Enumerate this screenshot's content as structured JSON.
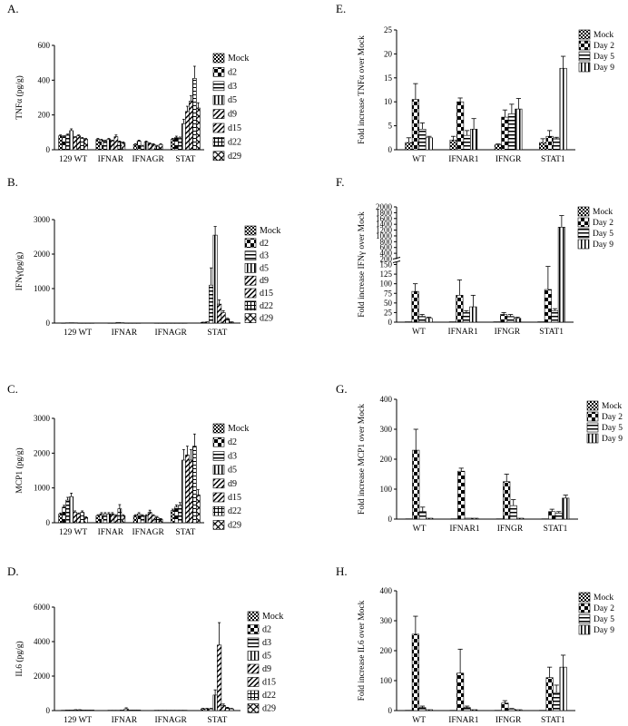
{
  "patterns": {
    "Mock": "checker",
    "d2": "blockR",
    "d3": "hstripe",
    "d5": "vstripe",
    "d9": "diag",
    "d15": "diag",
    "d22": "grid",
    "d29": "cross",
    "Day 2": "blockR",
    "Day 5": "hstripe",
    "Day 9": "vstripe"
  },
  "chart_data": [
    {
      "panel": "A.",
      "type": "bar",
      "ylabel": "TNFα (pg/g)",
      "yticks": [
        0,
        200,
        400,
        600
      ],
      "ylim": [
        0,
        600
      ],
      "categories": [
        "129 WT",
        "IFNAR",
        "IFNAGR",
        "STAT"
      ],
      "legend": [
        "Mock",
        "d2",
        "d3",
        "d5",
        "d9",
        "d15",
        "d22",
        "d29"
      ],
      "series": [
        {
          "name": "Mock",
          "values": [
            80,
            60,
            30,
            60
          ],
          "errors": [
            5,
            5,
            5,
            5
          ]
        },
        {
          "name": "d2",
          "values": [
            75,
            55,
            50,
            70
          ],
          "errors": [
            5,
            5,
            5,
            8
          ]
        },
        {
          "name": "d3",
          "values": [
            85,
            50,
            20,
            65
          ],
          "errors": [
            5,
            5,
            5,
            8
          ]
        },
        {
          "name": "d5",
          "values": [
            110,
            60,
            45,
            150
          ],
          "errors": [
            10,
            5,
            5,
            25
          ]
        },
        {
          "name": "d9",
          "values": [
            70,
            50,
            35,
            220
          ],
          "errors": [
            5,
            5,
            5,
            30
          ]
        },
        {
          "name": "d15",
          "values": [
            80,
            75,
            30,
            280
          ],
          "errors": [
            5,
            10,
            5,
            30
          ]
        },
        {
          "name": "d22",
          "values": [
            65,
            45,
            20,
            410
          ],
          "errors": [
            5,
            5,
            5,
            70
          ]
        },
        {
          "name": "d29",
          "values": [
            60,
            40,
            30,
            240
          ],
          "errors": [
            5,
            5,
            5,
            30
          ]
        }
      ]
    },
    {
      "panel": "B.",
      "type": "bar",
      "ylabel": "IFNγ(pg/g)",
      "yticks": [
        0,
        1000,
        2000,
        3000
      ],
      "ylim": [
        0,
        3000
      ],
      "categories": [
        "129 WT",
        "IFNAR",
        "IFNAGR",
        "STAT"
      ],
      "legend": [
        "Mock",
        "d2",
        "d3",
        "d5",
        "d9",
        "d15",
        "d22",
        "d29"
      ],
      "series": [
        {
          "name": "Mock",
          "values": [
            5,
            5,
            5,
            20
          ],
          "errors": [
            0,
            0,
            0,
            5
          ]
        },
        {
          "name": "d2",
          "values": [
            8,
            5,
            5,
            30
          ],
          "errors": [
            0,
            0,
            0,
            5
          ]
        },
        {
          "name": "d3",
          "values": [
            10,
            20,
            5,
            1100
          ],
          "errors": [
            0,
            0,
            0,
            500
          ]
        },
        {
          "name": "d5",
          "values": [
            8,
            10,
            5,
            2550
          ],
          "errors": [
            0,
            0,
            0,
            250
          ]
        },
        {
          "name": "d9",
          "values": [
            5,
            5,
            5,
            550
          ],
          "errors": [
            0,
            0,
            0,
            120
          ]
        },
        {
          "name": "d15",
          "values": [
            5,
            5,
            5,
            300
          ],
          "errors": [
            0,
            0,
            0,
            60
          ]
        },
        {
          "name": "d22",
          "values": [
            5,
            5,
            5,
            120
          ],
          "errors": [
            0,
            0,
            0,
            20
          ]
        },
        {
          "name": "d29",
          "values": [
            5,
            5,
            5,
            30
          ],
          "errors": [
            0,
            0,
            0,
            5
          ]
        }
      ]
    },
    {
      "panel": "C.",
      "type": "bar",
      "ylabel": "MCP1 (pg/g)",
      "yticks": [
        0,
        1000,
        2000,
        3000
      ],
      "ylim": [
        0,
        3000
      ],
      "categories": [
        "129 WT",
        "IFNAR",
        "IFNAGR",
        "STAT"
      ],
      "legend": [
        "Mock",
        "d2",
        "d3",
        "d5",
        "d9",
        "d15",
        "d22",
        "d29"
      ],
      "series": [
        {
          "name": "Mock",
          "values": [
            250,
            200,
            200,
            350
          ],
          "errors": [
            30,
            30,
            30,
            40
          ]
        },
        {
          "name": "d2",
          "values": [
            450,
            250,
            250,
            450
          ],
          "errors": [
            50,
            40,
            40,
            60
          ]
        },
        {
          "name": "d3",
          "values": [
            650,
            250,
            200,
            500
          ],
          "errors": [
            80,
            40,
            30,
            80
          ]
        },
        {
          "name": "d5",
          "values": [
            750,
            250,
            200,
            1800
          ],
          "errors": [
            100,
            40,
            30,
            300
          ]
        },
        {
          "name": "d9",
          "values": [
            300,
            250,
            300,
            1950
          ],
          "errors": [
            40,
            40,
            60,
            250
          ]
        },
        {
          "name": "d15",
          "values": [
            250,
            200,
            200,
            1800
          ],
          "errors": [
            30,
            30,
            30,
            300
          ]
        },
        {
          "name": "d22",
          "values": [
            300,
            400,
            150,
            2200
          ],
          "errors": [
            40,
            120,
            30,
            350
          ]
        },
        {
          "name": "d29",
          "values": [
            150,
            200,
            100,
            800
          ],
          "errors": [
            20,
            30,
            20,
            150
          ]
        }
      ]
    },
    {
      "panel": "D.",
      "type": "bar",
      "ylabel": "IL6 (pg/g)",
      "yticks": [
        0,
        2000,
        4000,
        6000
      ],
      "ylim": [
        0,
        6000
      ],
      "categories": [
        "129 WT",
        "IFNAR",
        "IFNAGR",
        "STAT"
      ],
      "legend": [
        "Mock",
        "d2",
        "d3",
        "d5",
        "d9",
        "d15",
        "d22",
        "d29"
      ],
      "series": [
        {
          "name": "Mock",
          "values": [
            20,
            20,
            20,
            100
          ],
          "errors": [
            0,
            0,
            0,
            30
          ]
        },
        {
          "name": "d2",
          "values": [
            30,
            20,
            20,
            100
          ],
          "errors": [
            0,
            0,
            0,
            30
          ]
        },
        {
          "name": "d3",
          "values": [
            30,
            20,
            20,
            100
          ],
          "errors": [
            0,
            0,
            0,
            30
          ]
        },
        {
          "name": "d5",
          "values": [
            40,
            30,
            20,
            900
          ],
          "errors": [
            10,
            0,
            0,
            300
          ]
        },
        {
          "name": "d9",
          "values": [
            40,
            100,
            20,
            3800
          ],
          "errors": [
            10,
            60,
            0,
            1300
          ]
        },
        {
          "name": "d15",
          "values": [
            30,
            30,
            20,
            300
          ],
          "errors": [
            0,
            0,
            0,
            80
          ]
        },
        {
          "name": "d22",
          "values": [
            30,
            30,
            20,
            150
          ],
          "errors": [
            0,
            0,
            0,
            40
          ]
        },
        {
          "name": "d29",
          "values": [
            30,
            30,
            20,
            100
          ],
          "errors": [
            0,
            0,
            0,
            30
          ]
        }
      ]
    },
    {
      "panel": "E.",
      "type": "bar",
      "ylabel": "Fold increase TNFα over Mock",
      "yticks": [
        0,
        5,
        10,
        15,
        20,
        25
      ],
      "ylim": [
        0,
        25
      ],
      "categories": [
        "WT",
        "IFNAR1",
        "IFNGR",
        "STAT1"
      ],
      "legend": [
        "Mock",
        "Day 2",
        "Day 5",
        "Day 9"
      ],
      "series": [
        {
          "name": "Mock",
          "values": [
            1.5,
            2.0,
            1.0,
            1.5
          ],
          "errors": [
            1.0,
            0.8,
            0.2,
            0.8
          ]
        },
        {
          "name": "Day 2",
          "values": [
            10.5,
            10.0,
            6.8,
            2.8
          ],
          "errors": [
            3.3,
            0.8,
            1.5,
            1.2
          ]
        },
        {
          "name": "Day 5",
          "values": [
            4.3,
            3.0,
            7.5,
            2.3
          ],
          "errors": [
            1.3,
            1.0,
            2.0,
            0.3
          ]
        },
        {
          "name": "Day 9",
          "values": [
            2.5,
            4.3,
            8.5,
            17.0
          ],
          "errors": [
            0.3,
            2.2,
            2.2,
            2.5
          ]
        }
      ]
    },
    {
      "panel": "F.",
      "type": "bar",
      "ylabel": "Fold increase IFNγ over Mock",
      "broken_axis": true,
      "yticks": [
        0,
        25,
        50,
        75,
        100,
        125,
        150,
        200,
        400,
        600,
        800,
        1000,
        1200,
        1400,
        1600,
        1800,
        2000
      ],
      "ylim": [
        0,
        2000
      ],
      "categories": [
        "WT",
        "IFNAR1",
        "IFNGR",
        "STAT1"
      ],
      "legend": [
        "Mock",
        "Day 2",
        "Day 5",
        "Day 9"
      ],
      "series": [
        {
          "name": "Mock",
          "values": [
            1,
            1,
            1,
            1
          ],
          "errors": [
            0,
            0,
            0,
            0
          ]
        },
        {
          "name": "Day 2",
          "values": [
            80,
            70,
            20,
            85
          ],
          "errors": [
            20,
            40,
            5,
            60
          ]
        },
        {
          "name": "Day 5",
          "values": [
            15,
            25,
            15,
            30
          ],
          "errors": [
            5,
            5,
            5,
            5
          ]
        },
        {
          "name": "Day 9",
          "values": [
            10,
            40,
            10,
            1300
          ],
          "errors": [
            3,
            30,
            3,
            400
          ]
        }
      ]
    },
    {
      "panel": "G.",
      "type": "bar",
      "ylabel": "Fold increase MCP1 over Mock",
      "yticks": [
        0,
        100,
        200,
        300,
        400
      ],
      "ylim": [
        0,
        400
      ],
      "categories": [
        "WT",
        "IFNAR1",
        "IFNGR",
        "STAT1"
      ],
      "legend": [
        "Mock",
        "Day 2",
        "Day 5",
        "Day 9"
      ],
      "series": [
        {
          "name": "Mock",
          "values": [
            1,
            1,
            1,
            1
          ],
          "errors": [
            0,
            0,
            0,
            0
          ]
        },
        {
          "name": "Day 2",
          "values": [
            230,
            160,
            125,
            25
          ],
          "errors": [
            70,
            10,
            25,
            8
          ]
        },
        {
          "name": "Day 5",
          "values": [
            25,
            3,
            45,
            20
          ],
          "errors": [
            15,
            0,
            20,
            5
          ]
        },
        {
          "name": "Day 9",
          "values": [
            3,
            3,
            3,
            70
          ],
          "errors": [
            0,
            0,
            0,
            10
          ]
        }
      ]
    },
    {
      "panel": "H.",
      "type": "bar",
      "ylabel": "Fold increase IL6 over Mock",
      "yticks": [
        0,
        100,
        200,
        300,
        400
      ],
      "ylim": [
        0,
        400
      ],
      "categories": [
        "WT",
        "IFNAR1",
        "IFNGR",
        "STAT1"
      ],
      "legend": [
        "Mock",
        "Day 2",
        "Day 5",
        "Day 9"
      ],
      "series": [
        {
          "name": "Mock",
          "values": [
            1,
            1,
            1,
            1
          ],
          "errors": [
            0,
            0,
            0,
            0
          ]
        },
        {
          "name": "Day 2",
          "values": [
            255,
            125,
            25,
            110
          ],
          "errors": [
            60,
            80,
            8,
            35
          ]
        },
        {
          "name": "Day 5",
          "values": [
            10,
            10,
            5,
            60
          ],
          "errors": [
            5,
            5,
            2,
            25
          ]
        },
        {
          "name": "Day 9",
          "values": [
            3,
            3,
            3,
            145
          ],
          "errors": [
            0,
            0,
            0,
            40
          ]
        }
      ]
    }
  ]
}
